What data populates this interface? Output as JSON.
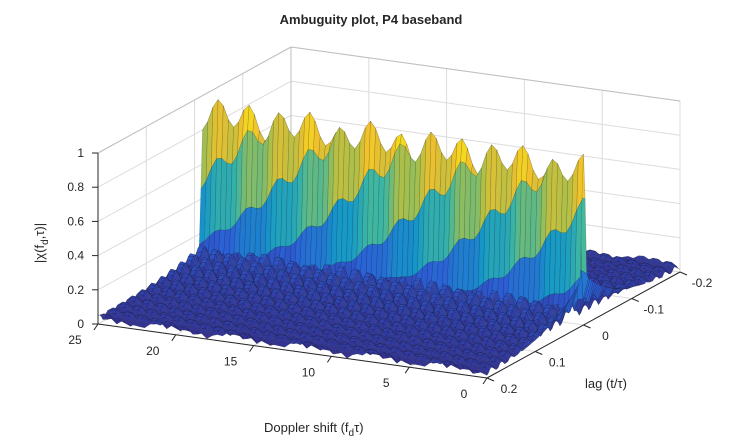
{
  "chart_data": {
    "type": "surface",
    "title": "Ambuguity plot, P4 baseband",
    "zlabel": "|χ(f_d,τ)|",
    "xlabel": "lag (t/τ)",
    "ylabel": "Doppler shift (f_dτ)",
    "x_range": [
      -0.2,
      0.2
    ],
    "y_range": [
      0,
      25
    ],
    "z_range": [
      0,
      1
    ],
    "x_ticks": [
      "-0.2",
      "-0.1",
      "0",
      "0.1",
      "0.2"
    ],
    "y_ticks": [
      "0",
      "5",
      "10",
      "15",
      "20",
      "25"
    ],
    "z_ticks": [
      "0",
      "0.2",
      "0.4",
      "0.6",
      "0.8",
      "1"
    ],
    "ridge": {
      "lag": 0,
      "peak_value": 1,
      "doppler_from": 0,
      "doppler_to": 25
    },
    "colormap": [
      "#352a87",
      "#2c5fd6",
      "#1597c9",
      "#3cb6a3",
      "#a7bf4c",
      "#f0c02d",
      "#f9fb0e"
    ],
    "grid": true
  },
  "labels": {
    "title": "Ambuguity plot, P4 baseband",
    "zlabel_main": "|χ(f",
    "zlabel_sub": "d",
    "zlabel_tail": ",τ)|",
    "xlabel": "lag (t/τ)",
    "ylabel_main": "Doppler shift (f",
    "ylabel_sub": "d",
    "ylabel_tail": "τ)"
  }
}
